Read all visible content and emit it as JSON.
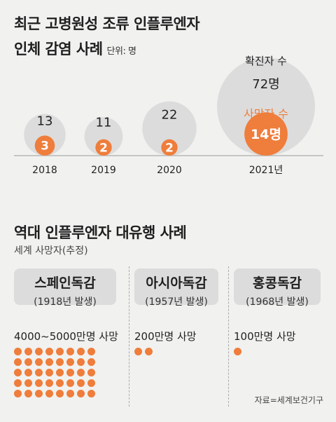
{
  "title1_line1": "최근 고병원성 조류 인플루엔자",
  "title1_line2": "인체 감염 사례",
  "unit": "단위: 명",
  "confirmed_label": "확진자 수",
  "death_label": "사망자 수",
  "chart_data": {
    "type": "bubble",
    "categories": [
      "2018",
      "2019",
      "2020",
      "2021년"
    ],
    "confirmed": [
      13,
      11,
      22,
      72
    ],
    "confirmed_labels": [
      "13",
      "11",
      "22",
      "72명"
    ],
    "deaths": [
      3,
      2,
      2,
      14
    ],
    "death_labels": [
      "3",
      "2",
      "2",
      "14명"
    ],
    "colors": {
      "confirmed": "#dcdcdc",
      "deaths": "#ef7d3b"
    }
  },
  "title2": "역대 인플루엔자 대유행 사례",
  "subtitle2": "세계 사망자(추정)",
  "pandemics": [
    {
      "name": "스페인독감",
      "year": "(1918년 발생)",
      "deaths": "4000~5000만명 사망",
      "dots": 40
    },
    {
      "name": "아시아독감",
      "year": "(1957년 발생)",
      "deaths": "200만명 사망",
      "dots": 2
    },
    {
      "name": "홍콩독감",
      "year": "(1968년 발생)",
      "deaths": "100만명 사망",
      "dots": 1
    }
  ],
  "source": "자료=세계보건기구"
}
